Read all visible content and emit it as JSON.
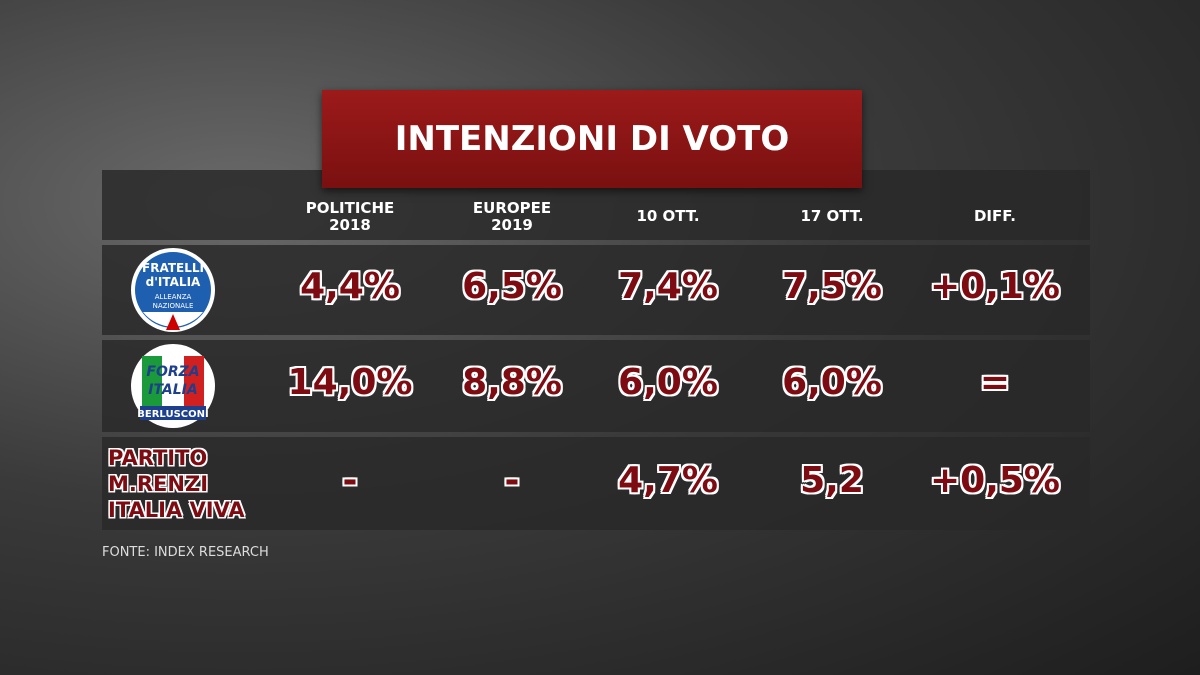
{
  "header": {
    "title": "INTENZIONI DI VOTO"
  },
  "table": {
    "columns": [
      [
        "POLITICHE",
        "2018"
      ],
      [
        "EUROPEE",
        "2019"
      ],
      [
        "10 OTT."
      ],
      [
        "17 OTT."
      ],
      [
        "DIFF."
      ]
    ],
    "rows": [
      {
        "logo": {
          "lines": [
            "FRATELLI",
            "d'ITALIA"
          ],
          "sub": [
            "ALLEANZA",
            "NAZIONALE"
          ]
        },
        "cells": [
          "4,4%",
          "6,5%",
          "7,4%",
          "7,5%",
          "+0,1%"
        ]
      },
      {
        "logo": {
          "lines": [
            "FORZA",
            "ITALIA"
          ],
          "sub": [
            "BERLUSCONI"
          ]
        },
        "cells": [
          "14,0%",
          "8,8%",
          "6,0%",
          "6,0%",
          "="
        ]
      },
      {
        "label": [
          "PARTITO",
          "M.RENZI",
          "ITALIA VIVA"
        ],
        "cells": [
          "-",
          "-",
          "4,7%",
          "5,2",
          "+0,5%"
        ]
      }
    ]
  },
  "footer": {
    "source": "FONTE: INDEX RESEARCH"
  }
}
